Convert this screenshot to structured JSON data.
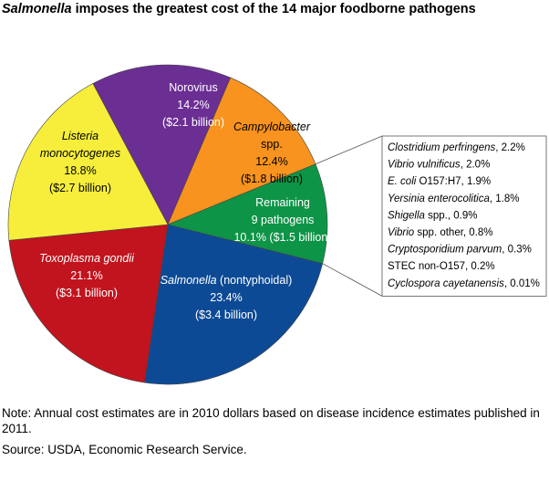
{
  "title": {
    "italic": "Salmonella",
    "rest": " imposes the greatest cost of the 14 major foodborne pathogens"
  },
  "chart_data": {
    "type": "pie",
    "title": "Salmonella imposes the greatest cost of the 14 major foodborne pathogens",
    "slices": [
      {
        "name": "Norovirus",
        "italic": false,
        "value": 14.2,
        "pct": "14.2%",
        "cost": "($2.1 billion)",
        "color": "#6b2e93",
        "text_color": "#ffffff"
      },
      {
        "name": "Campylobacter",
        "suffix": "spp.",
        "italic": true,
        "value": 12.4,
        "pct": "12.4%",
        "cost": "($1.8 billion)",
        "color": "#f7931e",
        "text_color": "#000000"
      },
      {
        "name": "Remaining",
        "suffix": "9 pathogens",
        "italic": false,
        "value": 10.1,
        "pct": "10.1%",
        "cost": "($1.5 billion)",
        "color": "#0e9447",
        "text_color": "#ffffff"
      },
      {
        "name": "Salmonella",
        "suffix": "(nontyphoidal)",
        "italic": true,
        "value": 23.4,
        "pct": "23.4%",
        "cost": "($3.4 billion)",
        "color": "#0d4a96",
        "text_color": "#ffffff"
      },
      {
        "name": "Toxoplasma gondii",
        "italic": true,
        "value": 21.1,
        "pct": "21.1%",
        "cost": "($3.1 billion)",
        "color": "#c1141e",
        "text_color": "#ffffff"
      },
      {
        "name": "Listeria monocytogenes",
        "italic": true,
        "value": 18.8,
        "pct": "18.8%",
        "cost": "($2.7 billion)",
        "color": "#f6ee3a",
        "text_color": "#000000"
      }
    ],
    "remaining_breakdown": [
      {
        "italic": "Clostridium perfringens",
        "rest": ", 2.2%",
        "value": 2.2
      },
      {
        "italic": "Vibrio vulnificus",
        "rest": ", 2.0%",
        "value": 2.0
      },
      {
        "italic": "E. coli",
        "rest": " O157:H7, 1.9%",
        "value": 1.9
      },
      {
        "italic": "Yersinia enterocolitica",
        "rest": ", 1.8%",
        "value": 1.8
      },
      {
        "italic": "Shigella",
        "rest": " spp., 0.9%",
        "value": 0.9
      },
      {
        "italic": "Vibrio",
        "rest": " spp. other, 0.8%",
        "value": 0.8
      },
      {
        "italic": "Cryptosporidium parvum",
        "rest": ", 0.3%",
        "value": 0.3
      },
      {
        "italic": "",
        "rest": "STEC non-O157, 0.2%",
        "value": 0.2
      },
      {
        "italic": "Cyclospora cayetanensis",
        "rest": ", 0.01%",
        "value": 0.01
      }
    ]
  },
  "note": "Note: Annual cost estimates are in 2010 dollars based on disease incidence estimates published in 2011.",
  "source": "Source: USDA, Economic Research Service."
}
